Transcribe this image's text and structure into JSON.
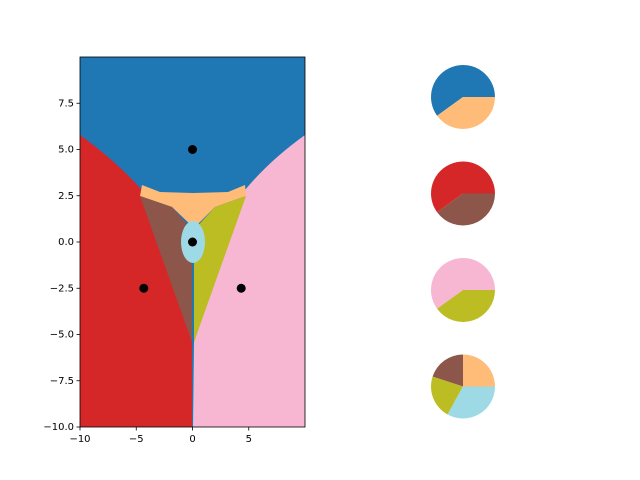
{
  "chart_data": [
    {
      "type": "scatter",
      "x": [
        0,
        0,
        -4.33,
        4.33
      ],
      "values": [
        5,
        0,
        -2.5,
        -2.5
      ],
      "color": "#000000",
      "xlim": [
        -10,
        10
      ],
      "ylim": [
        -10,
        10
      ],
      "xticks": [
        {
          "value": -10,
          "label": "−10"
        },
        {
          "value": -5,
          "label": "−5"
        },
        0,
        5
      ],
      "yticks": [
        {
          "value": -10,
          "label": "−10.0"
        },
        {
          "value": -7.5,
          "label": "−7.5"
        },
        {
          "value": -5,
          "label": "−5.0"
        },
        {
          "value": -2.5,
          "label": "−2.5"
        },
        {
          "value": 0,
          "label": "0.0"
        },
        2.5,
        {
          "value": 5,
          "label": "5.0"
        },
        7.5
      ]
    },
    {
      "type": "pie",
      "values": [
        60,
        40
      ],
      "colors": [
        "#1f77b4",
        "#ffbb78"
      ]
    },
    {
      "type": "pie",
      "values": [
        60,
        40
      ],
      "colors": [
        "#d62728",
        "#8c564b"
      ]
    },
    {
      "type": "pie",
      "values": [
        60,
        40
      ],
      "colors": [
        "#f7b6d2",
        "#bcbd22"
      ]
    },
    {
      "type": "pie",
      "values": [
        25,
        20,
        22,
        33
      ],
      "colors": [
        "#ffbb78",
        "#8c564b",
        "#bcbd22",
        "#9edae5"
      ]
    }
  ]
}
